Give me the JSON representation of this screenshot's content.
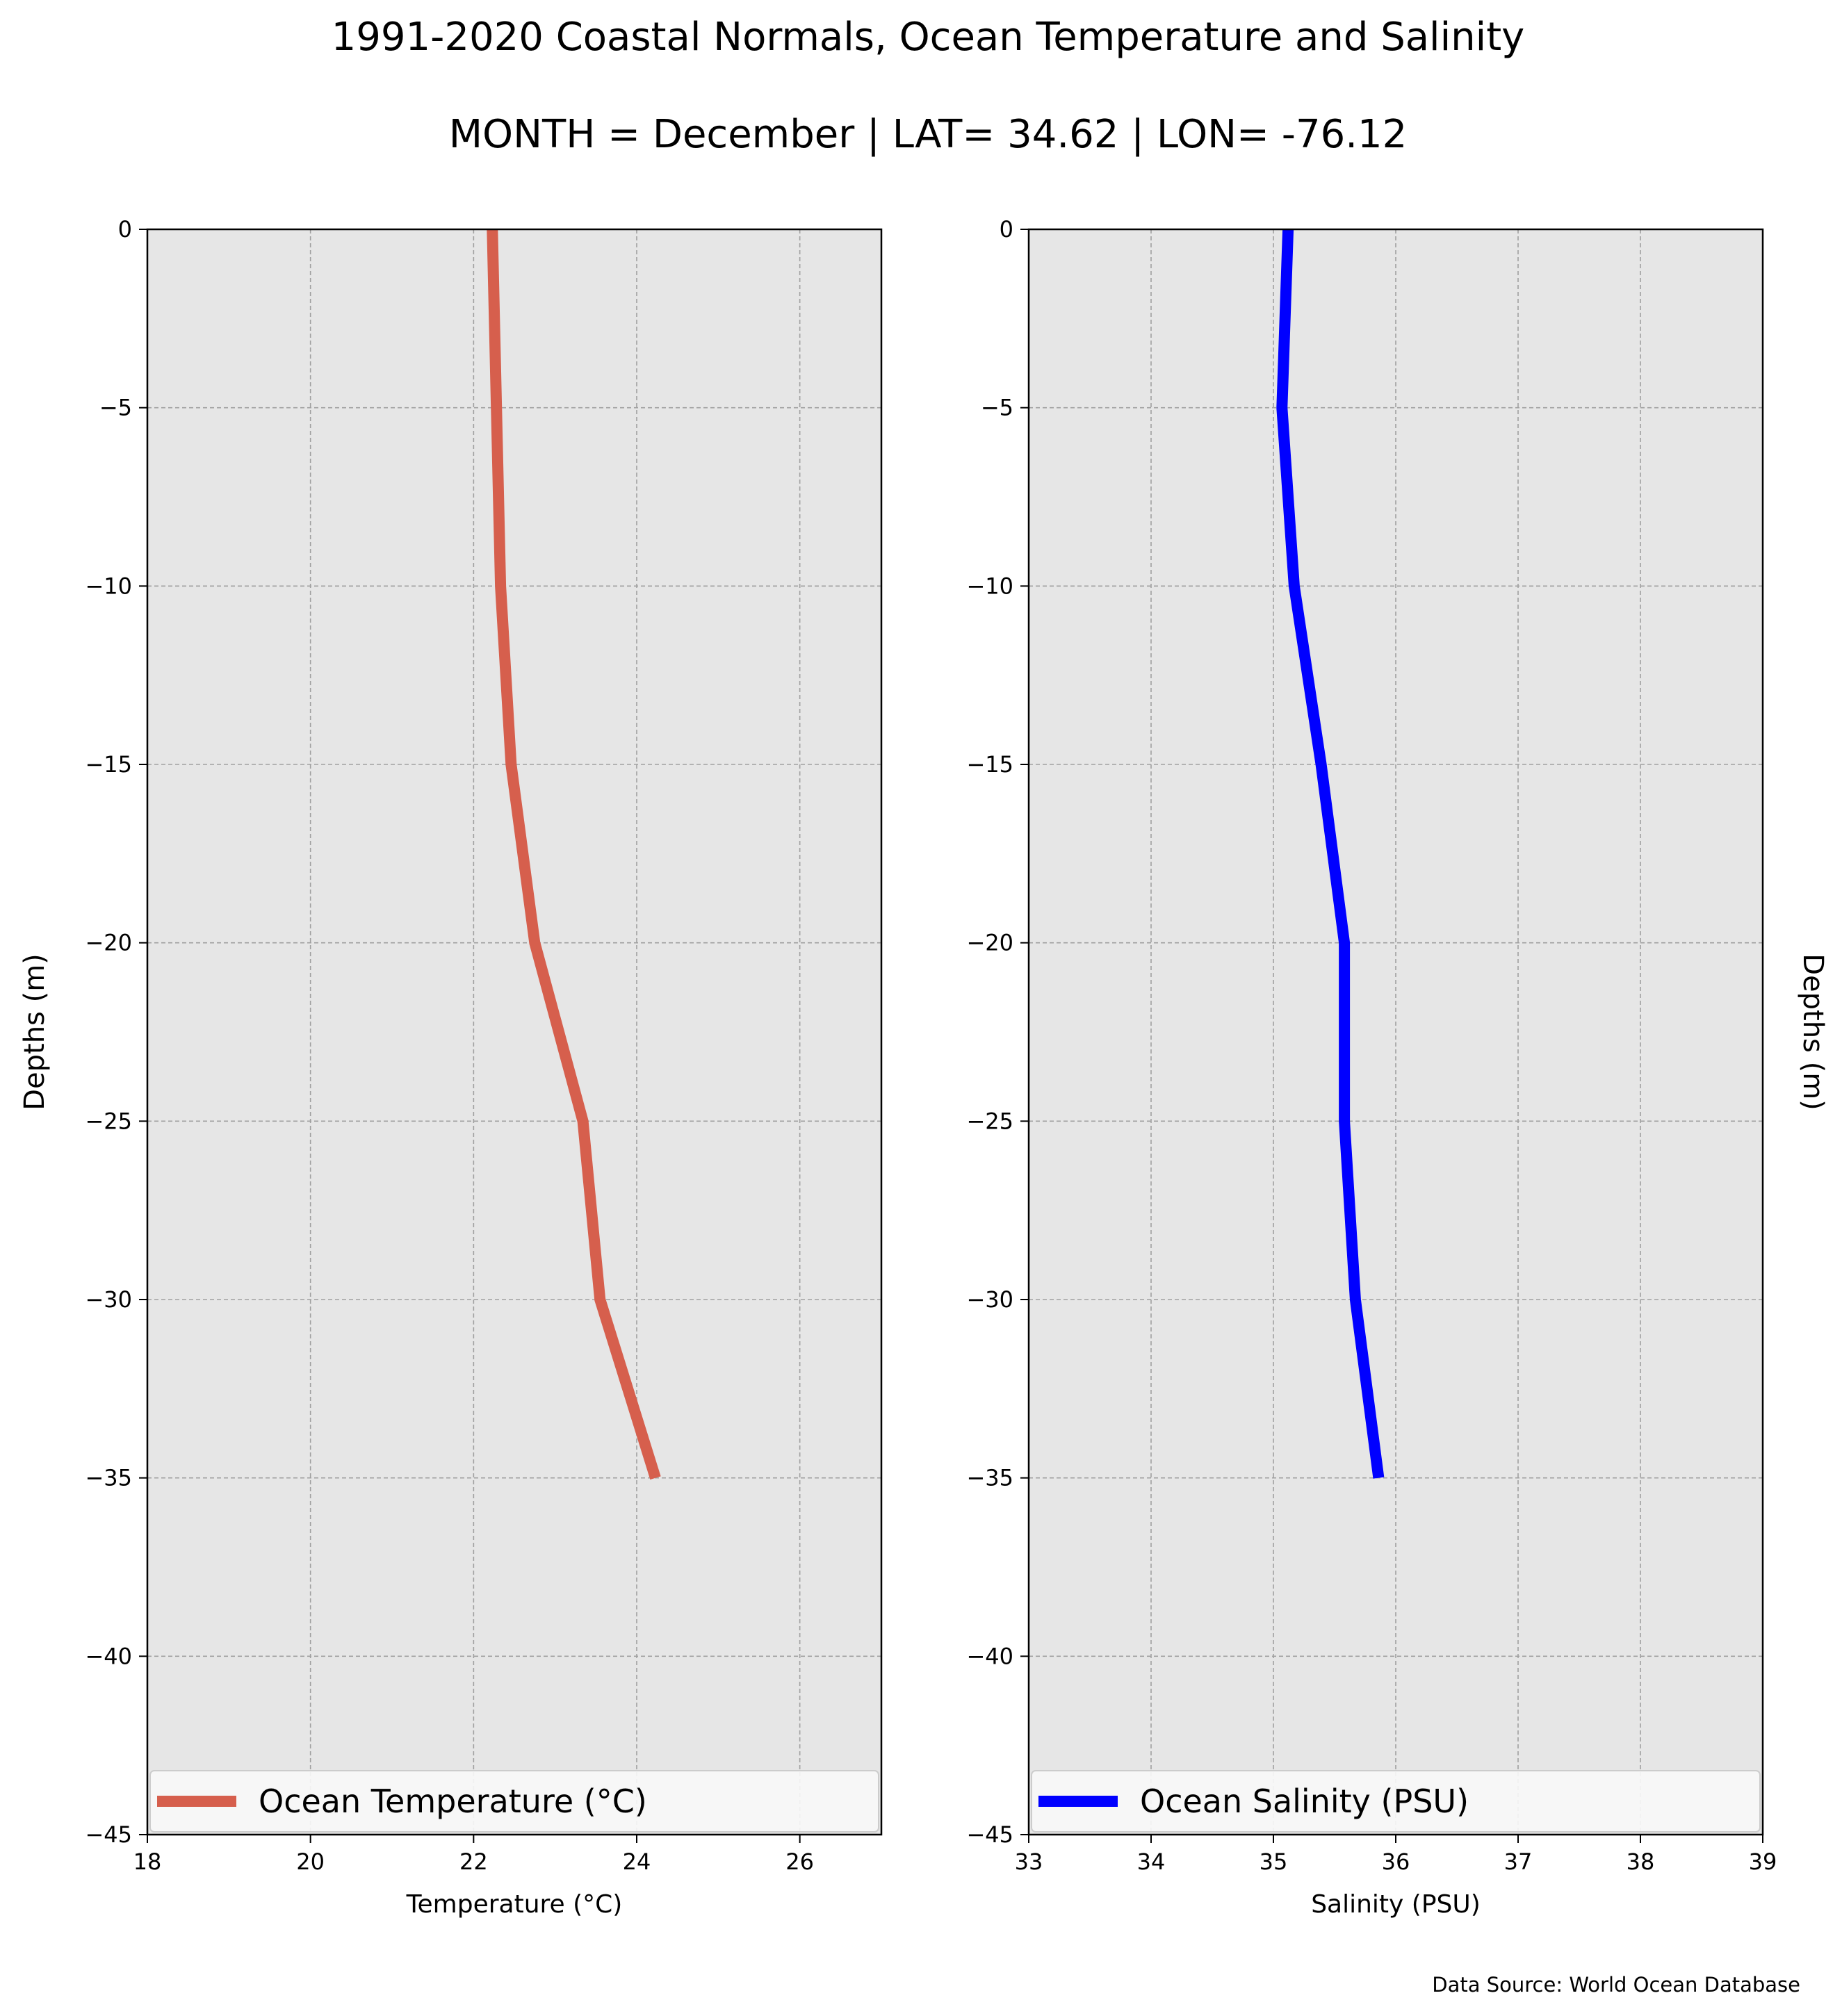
{
  "title": "1991-2020 Coastal Normals, Ocean Temperature and Salinity",
  "subtitle": "MONTH = December | LAT= 34.62 | LON= -76.12",
  "source": "Data Source: World Ocean Database",
  "colors": {
    "plot_bg": "#e6e6e6",
    "grid": "#a0a0a0",
    "temperature": "#d65f4d",
    "salinity": "#0000ff"
  },
  "chart_data": [
    {
      "type": "line",
      "xlabel": "Temperature ($^\\circ$C)",
      "xlabel_display": "Temperature (°C)",
      "ylabel": "Depths (m)",
      "xlim": [
        18,
        27
      ],
      "ylim": [
        -45,
        0
      ],
      "xticks": [
        18,
        20,
        22,
        24,
        26
      ],
      "xtick_labels": [
        "18",
        "20",
        "22",
        "24",
        "26"
      ],
      "yticks": [
        0,
        -5,
        -10,
        -15,
        -20,
        -25,
        -30,
        -35,
        -40,
        -45
      ],
      "ytick_labels": [
        "0",
        "−5",
        "−10",
        "−15",
        "−20",
        "−25",
        "−30",
        "−35",
        "−40",
        "−45"
      ],
      "grid": true,
      "legend_position": "bottom",
      "series": [
        {
          "name": "Ocean Temperature (°C)",
          "color": "#d65f4d",
          "x": [
            22.23,
            22.33,
            22.46,
            22.75,
            23.34,
            23.55,
            24.23
          ],
          "y": [
            0,
            -10,
            -15,
            -20,
            -25,
            -30,
            -35
          ]
        }
      ]
    },
    {
      "type": "line",
      "xlabel": "Salinity (PSU)",
      "ylabel": "Depths (m)",
      "xlim": [
        33,
        39
      ],
      "ylim": [
        -45,
        0
      ],
      "xticks": [
        33,
        34,
        35,
        36,
        37,
        38,
        39
      ],
      "xtick_labels": [
        "33",
        "34",
        "35",
        "36",
        "37",
        "38",
        "39"
      ],
      "yticks": [
        0,
        -5,
        -10,
        -15,
        -20,
        -25,
        -30,
        -35,
        -40,
        -45
      ],
      "ytick_labels": [
        "0",
        "−5",
        "−10",
        "−15",
        "−20",
        "−25",
        "−30",
        "−35",
        "−40",
        "−45"
      ],
      "grid": true,
      "legend_position": "bottom",
      "series": [
        {
          "name": "Ocean Salinity (PSU)",
          "color": "#0000ff",
          "x": [
            35.12,
            35.07,
            35.17,
            35.39,
            35.58,
            35.58,
            35.67,
            35.86
          ],
          "y": [
            0,
            -5,
            -10,
            -15,
            -20,
            -25,
            -30,
            -35
          ]
        }
      ]
    }
  ]
}
